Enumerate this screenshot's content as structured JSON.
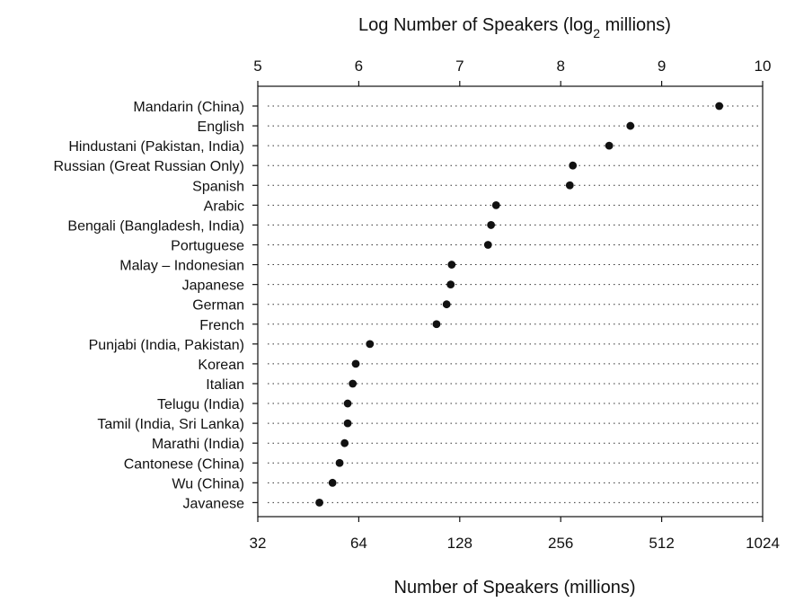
{
  "chart_data": {
    "type": "scatter",
    "subtype": "dot-plot",
    "top_axis_label_prefix": "Log Number of Speakers (log",
    "top_axis_label_sub": "2",
    "top_axis_label_suffix": " millions)",
    "bottom_axis_label": "Number of Speakers (millions)",
    "log_ticks": [
      "5",
      "6",
      "7",
      "8",
      "9",
      "10"
    ],
    "linear_ticks": [
      "32",
      "64",
      "128",
      "256",
      "512",
      "1024"
    ],
    "xlim_log2": [
      5,
      10
    ],
    "categories": [
      "Mandarin (China)",
      "English",
      "Hindustani (Pakistan, India)",
      "Russian (Great Russian Only)",
      "Spanish",
      "Arabic",
      "Bengali (Bangladesh, India)",
      "Portuguese",
      "Malay – Indonesian",
      "Japanese",
      "German",
      "French",
      "Punjabi (India, Pakistan)",
      "Korean",
      "Italian",
      "Telugu (India)",
      "Tamil (India, Sri Lanka)",
      "Marathi (India)",
      "Cantonese (China)",
      "Wu (China)",
      "Javanese"
    ],
    "values_log2": [
      9.57,
      8.69,
      8.48,
      8.12,
      8.09,
      7.36,
      7.31,
      7.28,
      6.92,
      6.91,
      6.87,
      6.77,
      6.11,
      5.97,
      5.94,
      5.89,
      5.89,
      5.86,
      5.81,
      5.74,
      5.61
    ],
    "grid": "dotted horizontal",
    "legend": "none"
  }
}
